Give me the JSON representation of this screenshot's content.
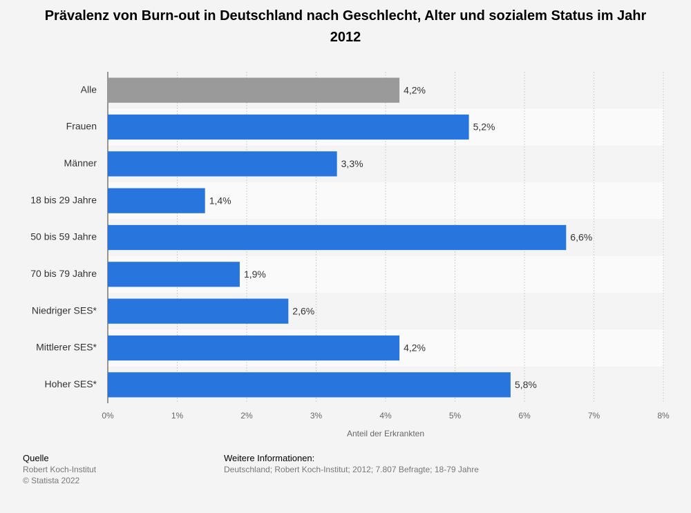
{
  "chart_data": {
    "type": "bar",
    "orientation": "horizontal",
    "title": "Prävalenz von Burn-out in Deutschland nach Geschlecht, Alter und sozialem Status im Jahr 2012",
    "categories": [
      "Alle",
      "Frauen",
      "Männer",
      "18 bis 29 Jahre",
      "50 bis 59 Jahre",
      "70 bis 79 Jahre",
      "Niedriger SES*",
      "Mittlerer SES*",
      "Hoher SES*"
    ],
    "values": [
      4.2,
      5.2,
      3.3,
      1.4,
      6.6,
      1.9,
      2.6,
      4.2,
      5.8
    ],
    "value_labels": [
      "4,2%",
      "5,2%",
      "3,3%",
      "1,4%",
      "6,6%",
      "1,9%",
      "2,6%",
      "4,2%",
      "5,8%"
    ],
    "colors": [
      "#9a9a9a",
      "#2876dd",
      "#2876dd",
      "#2876dd",
      "#2876dd",
      "#2876dd",
      "#2876dd",
      "#2876dd",
      "#2876dd"
    ],
    "xlim": [
      0,
      8
    ],
    "xticks": [
      {
        "value": 0,
        "label": "0%"
      },
      {
        "value": 1,
        "label": "1%"
      },
      {
        "value": 2,
        "label": "2%"
      },
      {
        "value": 3,
        "label": "3%"
      },
      {
        "value": 4,
        "label": "4%"
      },
      {
        "value": 5,
        "label": "5%"
      },
      {
        "value": 6,
        "label": "6%"
      },
      {
        "value": 7,
        "label": "7%"
      },
      {
        "value": 8,
        "label": "8%"
      }
    ],
    "xlabel": "Anteil der Erkrankten",
    "grid": true
  },
  "footer": {
    "source_title": "Quelle",
    "source_lines": [
      "Robert Koch-Institut",
      "© Statista 2022"
    ],
    "info_title": "Weitere Informationen:",
    "info_text": "Deutschland; Robert Koch-Institut; 2012; 7.807 Befragte; 18-79 Jahre"
  }
}
